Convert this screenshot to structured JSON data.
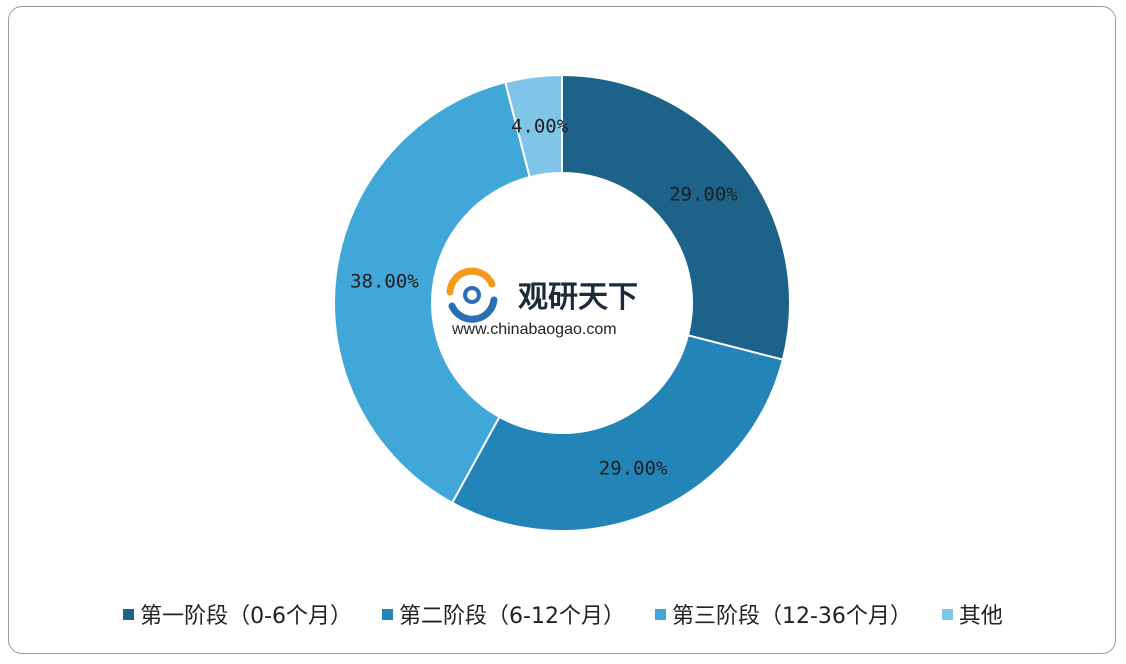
{
  "chart_data": {
    "type": "pie",
    "donut": true,
    "categories": [
      "第一阶段（0-6个月）",
      "第二阶段（6-12个月）",
      "第三阶段（12-36个月）",
      "其他"
    ],
    "values": [
      29.0,
      29.0,
      38.0,
      4.0
    ],
    "data_labels": [
      "29.00%",
      "29.00%",
      "38.00%",
      "4.00%"
    ],
    "colors": [
      "#1d6389",
      "#2384b8",
      "#41a7d8",
      "#80c5e8"
    ],
    "legend_position": "bottom",
    "title": ""
  },
  "watermark": {
    "name": "观研天下",
    "url": "www.chinabaogao.com"
  }
}
